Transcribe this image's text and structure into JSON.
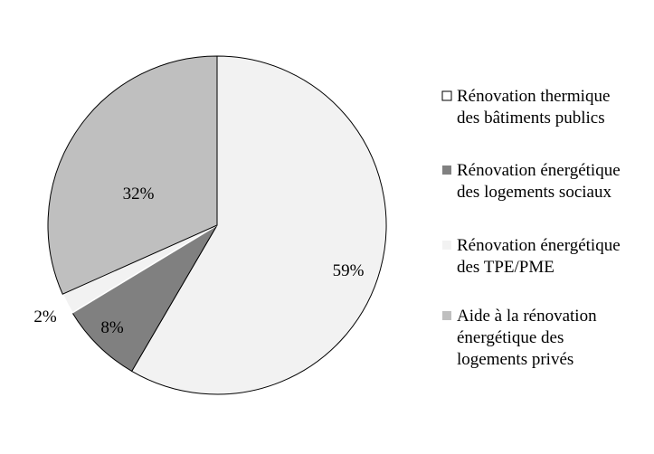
{
  "chart_data": {
    "type": "pie",
    "title": "",
    "slices": [
      {
        "label_lines": [
          "Rénovation thermique",
          "des bâtiments publics"
        ],
        "value": 59,
        "data_label": "59%",
        "color": "#f2f2f2",
        "legend_color": "#ffffff"
      },
      {
        "label_lines": [
          "Rénovation énergétique",
          "des logements sociaux"
        ],
        "value": 8,
        "data_label": "8%",
        "color": "#808080",
        "legend_color": "#808080"
      },
      {
        "label_lines": [
          "Rénovation énergétique",
          "des TPE/PME"
        ],
        "value": 2,
        "data_label": "2%",
        "color": "#f2f2f2",
        "legend_color": "#f2f2f2"
      },
      {
        "label_lines": [
          "Aide à la rénovation",
          "énergétique des",
          "logements privés"
        ],
        "value": 32,
        "data_label": "32%",
        "color": "#bfbfbf",
        "legend_color": "#bfbfbf"
      }
    ],
    "start": "12 o'clock",
    "direction": "clockwise",
    "legend_position": "right"
  }
}
